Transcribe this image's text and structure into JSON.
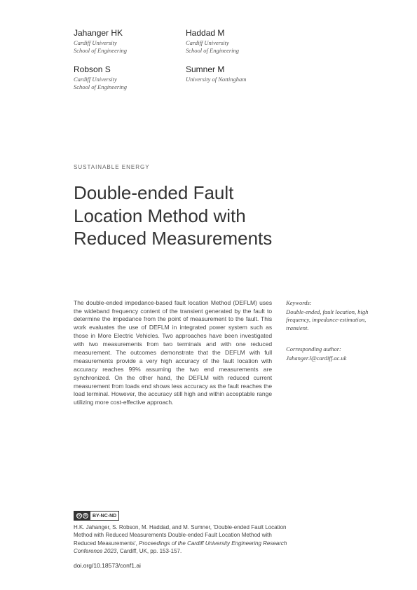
{
  "authors": [
    {
      "name": "Jahanger HK",
      "affil1": "Cardiff University",
      "affil2": "School of Engineering"
    },
    {
      "name": "Haddad M",
      "affil1": "Cardiff University",
      "affil2": "School of Engineering"
    },
    {
      "name": "Robson S",
      "affil1": "Cardiff University",
      "affil2": "School of Engineering"
    },
    {
      "name": "Sumner M",
      "affil1": "University of Nottingham",
      "affil2": ""
    }
  ],
  "section_label": "SUSTAINABLE ENERGY",
  "title": "Double-ended Fault Location Method with Reduced Measurements",
  "abstract": "The double-ended impedance-based fault location Method (DEFLM) uses the wideband frequency content of the transient generated by the fault to determine the impedance from the point of measurement to the fault. This work evaluates the use of DEFLM in integrated power system such as those in More Electric Vehicles. Two approaches have been investigated with two measurements from two terminals and with one reduced measurement. The outcomes demonstrate that the DEFLM with full measurements provide a very high accuracy of the fault location with accuracy reaches 99% assuming the two end measurements are synchronized. On the other hand, the DEFLM with reduced current measurement from loads end shows less accuracy as the fault reaches the load terminal. However, the accuracy still high and within acceptable range utilizing more cost-effective approach.",
  "keywords_label": "Keywords:",
  "keywords": "Double-ended, fault location, high frequency, impedance-estimation, transient.",
  "corr_label": "Corresponding author:",
  "corr_email": "JahangerJ@cardiff.ac.uk",
  "cc_text": "BY-NC-ND",
  "citation_prefix": "H.K. Jahanger, S. Robson, M. Haddad, and M. Sumner, 'Double-ended Fault Location Method with Reduced Measurements Double-ended Fault Location Method with Reduced Measurements', ",
  "citation_italic": "Proceedings of the Cardiff University Engineering Research Conference 2023",
  "citation_suffix": ", Cardiff, UK, pp. 153-157.",
  "doi": "doi.org/10.18573/conf1.ai"
}
